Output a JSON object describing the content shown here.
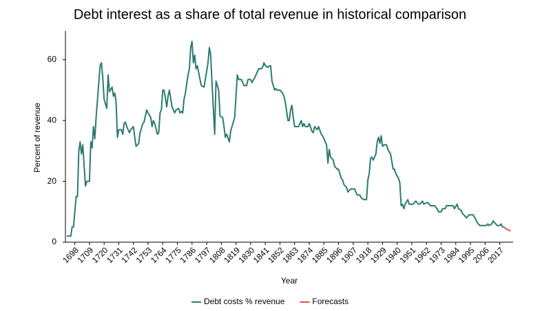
{
  "chart_data": {
    "type": "line",
    "title": "Debt interest as a share of total revenue in historical comparison",
    "x_label": "Year",
    "y_label": "Percent of revenue",
    "xlim": [
      1692,
      2026
    ],
    "ylim": [
      0,
      69
    ],
    "xticks": [
      1698,
      1709,
      1720,
      1731,
      1742,
      1753,
      1764,
      1775,
      1786,
      1797,
      1808,
      1819,
      1830,
      1841,
      1852,
      1863,
      1874,
      1885,
      1896,
      1907,
      1918,
      1929,
      1940,
      1951,
      1962,
      1973,
      1984,
      1995,
      2006,
      2017
    ],
    "yticks": [
      0,
      20,
      40,
      60
    ],
    "grid": false,
    "legend": "bottom",
    "series": [
      {
        "name": "Debt costs % revenue",
        "color": "#2b7a70",
        "x": [
          1692,
          1695,
          1696,
          1697,
          1699,
          1700,
          1701,
          1702,
          1703,
          1704,
          1706,
          1707,
          1709,
          1710,
          1711,
          1712,
          1713,
          1714,
          1716,
          1717,
          1718,
          1719,
          1720,
          1722,
          1723,
          1724,
          1726,
          1727,
          1728,
          1729,
          1730,
          1731,
          1733,
          1734,
          1735,
          1736,
          1737,
          1739,
          1740,
          1742,
          1743,
          1744,
          1746,
          1747,
          1749,
          1750,
          1752,
          1753,
          1755,
          1756,
          1757,
          1758,
          1760,
          1761,
          1762,
          1763,
          1764,
          1765,
          1767,
          1768,
          1769,
          1771,
          1773,
          1774,
          1776,
          1777,
          1778,
          1779,
          1780,
          1781,
          1783,
          1784,
          1785,
          1786,
          1787,
          1788,
          1789,
          1790,
          1792,
          1793,
          1795,
          1796,
          1798,
          1799,
          1800,
          1801,
          1803,
          1804,
          1805,
          1806,
          1807,
          1809,
          1810,
          1811,
          1812,
          1814,
          1815,
          1816,
          1818,
          1819,
          1820,
          1821,
          1823,
          1824,
          1825,
          1827,
          1828,
          1830,
          1831,
          1833,
          1834,
          1836,
          1838,
          1839,
          1840,
          1841,
          1843,
          1844,
          1845,
          1846,
          1847,
          1848,
          1849,
          1850,
          1852,
          1854,
          1855,
          1856,
          1858,
          1859,
          1860,
          1861,
          1862,
          1863,
          1865,
          1866,
          1868,
          1869,
          1870,
          1871,
          1873,
          1874,
          1876,
          1877,
          1878,
          1880,
          1881,
          1883,
          1884,
          1886,
          1887,
          1888,
          1889,
          1890,
          1892,
          1893,
          1895,
          1896,
          1898,
          1899,
          1900,
          1902,
          1903,
          1905,
          1907,
          1908,
          1910,
          1912,
          1913,
          1915,
          1917,
          1918,
          1919,
          1920,
          1921,
          1922,
          1924,
          1925,
          1926,
          1927,
          1928,
          1929,
          1930,
          1932,
          1933,
          1935,
          1937,
          1938,
          1939,
          1941,
          1942,
          1943,
          1944,
          1945,
          1946,
          1948,
          1949,
          1951,
          1952,
          1954,
          1956,
          1957,
          1959,
          1960,
          1962,
          1963,
          1965,
          1967,
          1968,
          1970,
          1971,
          1973,
          1974,
          1976,
          1977,
          1979,
          1980,
          1982,
          1983,
          1985,
          1986,
          1988,
          1989,
          1991,
          1992,
          1994,
          1996,
          1997,
          1999,
          2000,
          2002,
          2004,
          2005,
          2007,
          2008,
          2009,
          2011,
          2012,
          2014,
          2015,
          2017,
          2018,
          2019,
          2020
        ],
        "values": [
          2,
          2,
          5,
          5,
          15,
          15,
          30,
          33,
          29,
          32,
          18.5,
          20,
          20,
          33,
          31,
          38,
          34,
          41,
          52.5,
          58,
          59,
          54,
          47,
          44,
          55,
          49.5,
          51,
          48,
          49,
          46,
          34.5,
          37,
          37,
          35.5,
          39,
          39.5,
          38,
          36,
          37,
          38,
          34.5,
          31.5,
          32.5,
          36,
          39,
          39.5,
          43.5,
          42.5,
          41,
          38,
          40,
          39,
          35.5,
          36,
          42.5,
          43.5,
          50,
          50,
          44.5,
          48,
          50,
          44.5,
          42.5,
          43.5,
          44,
          42.5,
          43,
          42.5,
          47,
          49,
          55,
          57,
          64,
          66,
          59,
          61.5,
          57,
          58,
          53.5,
          51.5,
          51,
          53.5,
          59,
          64,
          61.5,
          52.5,
          35.5,
          53,
          51.5,
          50,
          41.5,
          41,
          38,
          34.5,
          35.5,
          33,
          36.5,
          38,
          41,
          48,
          55,
          53.5,
          53.5,
          52.5,
          51.5,
          51.5,
          53.5,
          53.5,
          52.5,
          54,
          55,
          57,
          57,
          57.5,
          59,
          58,
          57.5,
          58,
          58,
          53,
          51.5,
          50,
          50.5,
          50,
          50,
          49,
          48,
          46,
          40,
          40,
          43.5,
          45,
          41,
          38,
          38,
          38,
          40,
          38,
          39,
          38,
          38,
          39,
          36.5,
          36,
          38,
          37,
          38,
          35.5,
          35,
          33,
          32,
          26,
          30.5,
          28,
          27,
          25,
          24,
          24,
          21,
          20.5,
          19,
          18,
          16.5,
          17.5,
          17.5,
          17.5,
          15.5,
          15.5,
          14.5,
          14,
          14,
          20.5,
          22.5,
          27.5,
          28,
          27,
          29,
          33,
          34.5,
          32.5,
          35,
          31.5,
          32,
          32,
          30.5,
          29,
          24,
          24,
          22.5,
          21,
          19.5,
          12,
          12.5,
          11,
          12.5,
          14,
          12.5,
          12.5,
          12.5,
          13.5,
          12.5,
          12.5,
          13.5,
          12.5,
          13,
          13,
          12,
          12,
          12,
          11,
          10,
          10,
          11,
          11,
          12,
          12,
          12,
          12,
          11,
          12.5,
          11,
          10.5,
          9.5,
          8.5,
          8,
          9,
          9,
          9,
          7.5,
          6.5,
          5.5,
          5.5,
          5.5,
          5.5,
          6,
          5.5,
          6,
          7,
          6,
          5.5,
          5.5,
          6,
          5,
          5
        ]
      },
      {
        "name": "Forecasts",
        "color": "#e0533f",
        "x": [
          2020,
          2022,
          2024,
          2025
        ],
        "values": [
          5,
          4.3,
          4,
          3.6
        ]
      }
    ]
  }
}
